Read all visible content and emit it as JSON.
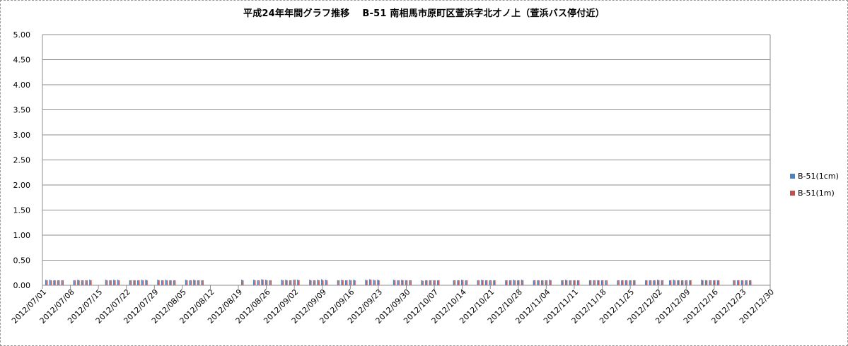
{
  "chart_data": {
    "type": "bar",
    "title": "平成24年年間グラフ推移　 B-51 南相馬市原町区萱浜字北才ノ上（萱浜バス停付近）",
    "ylim": [
      0,
      5
    ],
    "yticks": [
      "0.00",
      "0.50",
      "1.00",
      "1.50",
      "2.00",
      "2.50",
      "3.00",
      "3.50",
      "4.00",
      "4.50",
      "5.00"
    ],
    "xticks": [
      "2012/07/01",
      "2012/07/08",
      "2012/07/15",
      "2012/07/22",
      "2012/07/29",
      "2012/08/05",
      "2012/08/12",
      "2012/08/19",
      "2012/08/26",
      "2012/09/02",
      "2012/09/09",
      "2012/09/16",
      "2012/09/23",
      "2012/09/30",
      "2012/10/07",
      "2012/10/14",
      "2012/10/21",
      "2012/10/28",
      "2012/11/04",
      "2012/11/11",
      "2012/11/18",
      "2012/11/25",
      "2012/12/02",
      "2012/12/09",
      "2012/12/16",
      "2012/12/23",
      "2012/12/30"
    ],
    "x_start": "2012/07/01",
    "x_end": "2012/12/30",
    "grid": true,
    "legend_position": "right",
    "series": [
      {
        "name": "B-51(1cm)",
        "color": "#4f81bd",
        "value_typical": 0.1
      },
      {
        "name": "B-51(1m)",
        "color": "#c0504d",
        "value_typical": 0.1
      }
    ],
    "points": [
      [
        "2012/07/02",
        0.11,
        0.1
      ],
      [
        "2012/07/03",
        0.11,
        0.1
      ],
      [
        "2012/07/04",
        0.1,
        0.1
      ],
      [
        "2012/07/05",
        0.1,
        0.1
      ],
      [
        "2012/07/06",
        0.1,
        0.1
      ],
      [
        "2012/07/09",
        0.1,
        0.1
      ],
      [
        "2012/07/10",
        0.11,
        0.1
      ],
      [
        "2012/07/11",
        0.1,
        0.1
      ],
      [
        "2012/07/12",
        0.1,
        0.1
      ],
      [
        "2012/07/13",
        0.11,
        0.1
      ],
      [
        "2012/07/17",
        0.11,
        0.1
      ],
      [
        "2012/07/18",
        0.1,
        0.1
      ],
      [
        "2012/07/19",
        0.11,
        0.1
      ],
      [
        "2012/07/20",
        0.11,
        0.1
      ],
      [
        "2012/07/23",
        0.1,
        0.1
      ],
      [
        "2012/07/24",
        0.1,
        0.1
      ],
      [
        "2012/07/25",
        0.1,
        0.1
      ],
      [
        "2012/07/26",
        0.11,
        0.1
      ],
      [
        "2012/07/27",
        0.11,
        0.1
      ],
      [
        "2012/07/30",
        0.11,
        0.1
      ],
      [
        "2012/07/31",
        0.1,
        0.1
      ],
      [
        "2012/08/01",
        0.11,
        0.1
      ],
      [
        "2012/08/02",
        0.1,
        0.1
      ],
      [
        "2012/08/03",
        0.1,
        0.1
      ],
      [
        "2012/08/06",
        0.11,
        0.1
      ],
      [
        "2012/08/07",
        0.1,
        0.1
      ],
      [
        "2012/08/08",
        0.11,
        0.1
      ],
      [
        "2012/08/09",
        0.1,
        0.1
      ],
      [
        "2012/08/10",
        0.1,
        0.1
      ],
      [
        "2012/08/20",
        0.11,
        0.1
      ],
      [
        "2012/08/23",
        0.11,
        0.1
      ],
      [
        "2012/08/24",
        0.1,
        0.1
      ],
      [
        "2012/08/25",
        0.12,
        0.11
      ],
      [
        "2012/08/26",
        0.11,
        0.1
      ],
      [
        "2012/08/27",
        0.1,
        0.1
      ],
      [
        "2012/08/30",
        0.11,
        0.1
      ],
      [
        "2012/08/31",
        0.11,
        0.1
      ],
      [
        "2012/09/01",
        0.1,
        0.1
      ],
      [
        "2012/09/02",
        0.11,
        0.11
      ],
      [
        "2012/09/03",
        0.11,
        0.1
      ],
      [
        "2012/09/06",
        0.11,
        0.1
      ],
      [
        "2012/09/07",
        0.1,
        0.1
      ],
      [
        "2012/09/08",
        0.11,
        0.1
      ],
      [
        "2012/09/09",
        0.12,
        0.1
      ],
      [
        "2012/09/10",
        0.11,
        0.1
      ],
      [
        "2012/09/13",
        0.1,
        0.1
      ],
      [
        "2012/09/14",
        0.11,
        0.1
      ],
      [
        "2012/09/15",
        0.1,
        0.1
      ],
      [
        "2012/09/16",
        0.11,
        0.1
      ],
      [
        "2012/09/17",
        0.11,
        0.1
      ],
      [
        "2012/09/20",
        0.11,
        0.1
      ],
      [
        "2012/09/21",
        0.12,
        0.11
      ],
      [
        "2012/09/22",
        0.11,
        0.1
      ],
      [
        "2012/09/23",
        0.11,
        0.1
      ],
      [
        "2012/09/27",
        0.11,
        0.1
      ],
      [
        "2012/09/28",
        0.1,
        0.1
      ],
      [
        "2012/09/29",
        0.11,
        0.1
      ],
      [
        "2012/09/30",
        0.1,
        0.1
      ],
      [
        "2012/10/01",
        0.1,
        0.1
      ],
      [
        "2012/10/04",
        0.1,
        0.09
      ],
      [
        "2012/10/05",
        0.1,
        0.1
      ],
      [
        "2012/10/06",
        0.1,
        0.1
      ],
      [
        "2012/10/07",
        0.1,
        0.1
      ],
      [
        "2012/10/08",
        0.1,
        0.1
      ],
      [
        "2012/10/12",
        0.1,
        0.1
      ],
      [
        "2012/10/13",
        0.1,
        0.1
      ],
      [
        "2012/10/14",
        0.11,
        0.1
      ],
      [
        "2012/10/15",
        0.1,
        0.1
      ],
      [
        "2012/10/18",
        0.1,
        0.1
      ],
      [
        "2012/10/19",
        0.11,
        0.1
      ],
      [
        "2012/10/20",
        0.1,
        0.1
      ],
      [
        "2012/10/21",
        0.1,
        0.1
      ],
      [
        "2012/10/22",
        0.1,
        0.1
      ],
      [
        "2012/10/25",
        0.1,
        0.1
      ],
      [
        "2012/10/26",
        0.1,
        0.1
      ],
      [
        "2012/10/27",
        0.11,
        0.1
      ],
      [
        "2012/10/28",
        0.1,
        0.1
      ],
      [
        "2012/10/29",
        0.11,
        0.1
      ],
      [
        "2012/11/01",
        0.1,
        0.1
      ],
      [
        "2012/11/02",
        0.1,
        0.1
      ],
      [
        "2012/11/03",
        0.1,
        0.1
      ],
      [
        "2012/11/04",
        0.1,
        0.1
      ],
      [
        "2012/11/05",
        0.11,
        0.1
      ],
      [
        "2012/11/08",
        0.1,
        0.1
      ],
      [
        "2012/11/09",
        0.11,
        0.1
      ],
      [
        "2012/11/10",
        0.1,
        0.1
      ],
      [
        "2012/11/11",
        0.1,
        0.1
      ],
      [
        "2012/11/12",
        0.1,
        0.1
      ],
      [
        "2012/11/15",
        0.1,
        0.1
      ],
      [
        "2012/11/16",
        0.1,
        0.1
      ],
      [
        "2012/11/17",
        0.1,
        0.1
      ],
      [
        "2012/11/18",
        0.1,
        0.1
      ],
      [
        "2012/11/19",
        0.1,
        0.1
      ],
      [
        "2012/11/22",
        0.1,
        0.1
      ],
      [
        "2012/11/23",
        0.1,
        0.1
      ],
      [
        "2012/11/24",
        0.1,
        0.1
      ],
      [
        "2012/11/25",
        0.1,
        0.1
      ],
      [
        "2012/11/26",
        0.1,
        0.1
      ],
      [
        "2012/11/29",
        0.1,
        0.1
      ],
      [
        "2012/11/30",
        0.1,
        0.1
      ],
      [
        "2012/12/01",
        0.1,
        0.1
      ],
      [
        "2012/12/02",
        0.11,
        0.1
      ],
      [
        "2012/12/03",
        0.1,
        0.1
      ],
      [
        "2012/12/05",
        0.1,
        0.1
      ],
      [
        "2012/12/06",
        0.11,
        0.1
      ],
      [
        "2012/12/07",
        0.1,
        0.1
      ],
      [
        "2012/12/08",
        0.1,
        0.1
      ],
      [
        "2012/12/09",
        0.1,
        0.1
      ],
      [
        "2012/12/10",
        0.1,
        0.1
      ],
      [
        "2012/12/13",
        0.11,
        0.1
      ],
      [
        "2012/12/14",
        0.1,
        0.1
      ],
      [
        "2012/12/15",
        0.1,
        0.1
      ],
      [
        "2012/12/16",
        0.1,
        0.1
      ],
      [
        "2012/12/17",
        0.1,
        0.1
      ],
      [
        "2012/12/21",
        0.1,
        0.1
      ],
      [
        "2012/12/22",
        0.1,
        0.1
      ],
      [
        "2012/12/23",
        0.1,
        0.1
      ],
      [
        "2012/12/24",
        0.1,
        0.1
      ],
      [
        "2012/12/25",
        0.1,
        0.1
      ]
    ]
  }
}
